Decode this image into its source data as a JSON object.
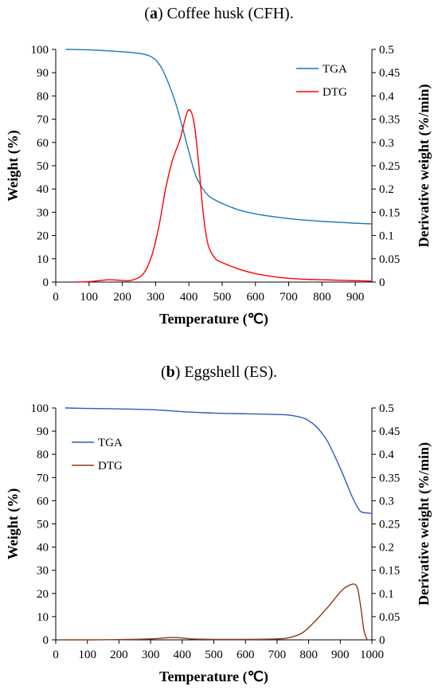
{
  "captions": [
    {
      "letter": "a",
      "text": " Coffee husk (CFH)."
    },
    {
      "letter": "b",
      "text": " Eggshell (ES)."
    }
  ],
  "chart_data": [
    {
      "type": "line",
      "title": "(a) Coffee husk (CFH).",
      "xlabel": "Temperature (℃)",
      "ylabel": "Weight (%)",
      "y2label": "Derivative weight (%/min)",
      "xlim": [
        0,
        950
      ],
      "ylim": [
        0,
        100
      ],
      "y2lim": [
        0,
        0.5
      ],
      "xticks": [
        0,
        100,
        200,
        300,
        400,
        500,
        600,
        700,
        800,
        900
      ],
      "yticks": [
        0,
        10,
        20,
        30,
        40,
        50,
        60,
        70,
        80,
        90,
        100
      ],
      "y2ticks": [
        0,
        0.05,
        0.1,
        0.15,
        0.2,
        0.25,
        0.3,
        0.35,
        0.4,
        0.45,
        0.5
      ],
      "grid": false,
      "legend_position": "top-right",
      "series": [
        {
          "name": "TGA",
          "axis": "left",
          "color": "#1f77b4",
          "x": [
            30,
            100,
            200,
            250,
            280,
            300,
            320,
            340,
            360,
            380,
            400,
            420,
            440,
            460,
            480,
            500,
            550,
            600,
            650,
            700,
            750,
            800,
            850,
            900,
            950
          ],
          "y": [
            100,
            99.8,
            99,
            98.3,
            97.3,
            95.5,
            91.5,
            85,
            77,
            67,
            56,
            46,
            40.5,
            37,
            35.2,
            33.8,
            31,
            29.3,
            28.2,
            27.3,
            26.6,
            26.1,
            25.7,
            25.3,
            25
          ]
        },
        {
          "name": "DTG",
          "axis": "right",
          "color": "#ff0000",
          "x": [
            60,
            100,
            130,
            160,
            190,
            220,
            250,
            270,
            290,
            310,
            330,
            350,
            365,
            375,
            385,
            395,
            403,
            412,
            420,
            430,
            440,
            450,
            460,
            480,
            500,
            550,
            600,
            650,
            700,
            750,
            800,
            850,
            900,
            950
          ],
          "y": [
            0,
            0.001,
            0.003,
            0.005,
            0.004,
            0.003,
            0.01,
            0.025,
            0.06,
            0.12,
            0.2,
            0.26,
            0.29,
            0.31,
            0.34,
            0.365,
            0.37,
            0.355,
            0.32,
            0.25,
            0.17,
            0.11,
            0.075,
            0.05,
            0.042,
            0.028,
            0.018,
            0.012,
            0.008,
            0.006,
            0.005,
            0.004,
            0.003,
            0.002
          ]
        }
      ]
    },
    {
      "type": "line",
      "title": "(b) Eggshell (ES).",
      "xlabel": "Temperature (℃)",
      "ylabel": "Weight (%)",
      "y2label": "Derivative weight (%/min)",
      "xlim": [
        0,
        1000
      ],
      "ylim": [
        0,
        100
      ],
      "y2lim": [
        0,
        0.5
      ],
      "xticks": [
        0,
        100,
        200,
        300,
        400,
        500,
        600,
        700,
        800,
        900,
        1000
      ],
      "yticks": [
        0,
        10,
        20,
        30,
        40,
        50,
        60,
        70,
        80,
        90,
        100
      ],
      "y2ticks": [
        0,
        0.05,
        0.1,
        0.15,
        0.2,
        0.25,
        0.3,
        0.35,
        0.4,
        0.45,
        0.5
      ],
      "grid": false,
      "legend_position": "top-left",
      "series": [
        {
          "name": "TGA",
          "axis": "left",
          "color": "#2e5cb8",
          "x": [
            30,
            100,
            200,
            300,
            350,
            400,
            500,
            600,
            700,
            740,
            780,
            800,
            820,
            840,
            860,
            880,
            900,
            920,
            940,
            960,
            970,
            980,
            1000
          ],
          "y": [
            100,
            99.8,
            99.6,
            99.3,
            98.9,
            98.4,
            97.8,
            97.5,
            97.2,
            96.9,
            95.8,
            94.5,
            92.5,
            89.5,
            85.5,
            80,
            74,
            67.5,
            61,
            56,
            55,
            54.8,
            54.5
          ]
        },
        {
          "name": "DTG",
          "axis": "right",
          "color": "#8b3a1a",
          "x": [
            30,
            100,
            200,
            300,
            340,
            370,
            400,
            430,
            500,
            600,
            700,
            740,
            780,
            820,
            860,
            890,
            910,
            930,
            945,
            955,
            965,
            975,
            985
          ],
          "y": [
            0,
            0,
            0.0005,
            0.002,
            0.004,
            0.005,
            0.004,
            0.002,
            0.001,
            0.001,
            0.002,
            0.005,
            0.015,
            0.04,
            0.07,
            0.095,
            0.11,
            0.118,
            0.12,
            0.11,
            0.07,
            0.02,
            0
          ]
        }
      ]
    }
  ]
}
